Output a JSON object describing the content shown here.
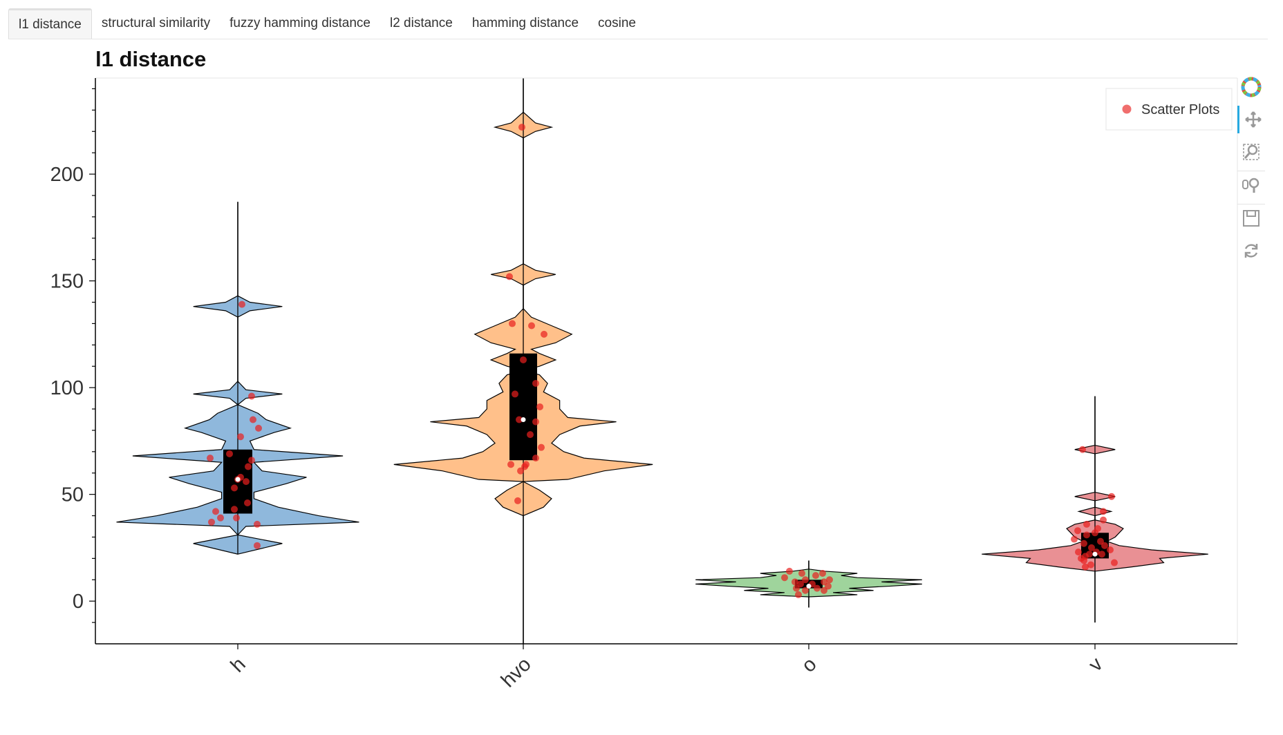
{
  "tabs": [
    {
      "label": "l1 distance",
      "active": true
    },
    {
      "label": "structural similarity",
      "active": false
    },
    {
      "label": "fuzzy hamming distance",
      "active": false
    },
    {
      "label": "l2 distance",
      "active": false
    },
    {
      "label": "hamming distance",
      "active": false
    },
    {
      "label": "cosine",
      "active": false
    }
  ],
  "toolbar": {
    "tools": [
      "bokeh-logo-icon",
      "pan-icon",
      "box-zoom-icon",
      "wheel-zoom-icon",
      "save-icon",
      "reset-icon"
    ]
  },
  "chart_data": {
    "type": "violin",
    "title": "l1 distance",
    "xlabel": "",
    "ylabel": "",
    "ylim": [
      -20,
      245
    ],
    "yticks": [
      0,
      50,
      100,
      150,
      200
    ],
    "categories": [
      "h",
      "hvo",
      "o",
      "v"
    ],
    "legend": {
      "entries": [
        "Scatter Plots"
      ],
      "placement": "top-right"
    },
    "series": [
      {
        "category": "h",
        "color": "#8fb8dc",
        "whisker": [
          22,
          187
        ],
        "q1": 41,
        "q3": 71,
        "median": 57,
        "density": [
          [
            22,
            0
          ],
          [
            27,
            55
          ],
          [
            31,
            0
          ],
          [
            35,
            10
          ],
          [
            37,
            150
          ],
          [
            40,
            100
          ],
          [
            44,
            50
          ],
          [
            48,
            20
          ],
          [
            51,
            20
          ],
          [
            55,
            60
          ],
          [
            58,
            85
          ],
          [
            61,
            30
          ],
          [
            65,
            20
          ],
          [
            68,
            130
          ],
          [
            71,
            20
          ],
          [
            75,
            15
          ],
          [
            79,
            45
          ],
          [
            81,
            65
          ],
          [
            85,
            35
          ],
          [
            88,
            25
          ],
          [
            92,
            0
          ],
          [
            95,
            10
          ],
          [
            97,
            55
          ],
          [
            99,
            10
          ],
          [
            103,
            0
          ],
          [
            133,
            0
          ],
          [
            136,
            15
          ],
          [
            138,
            55
          ],
          [
            140,
            15
          ],
          [
            143,
            0
          ]
        ],
        "points": [
          [
            69,
            -12
          ],
          [
            67,
            -40
          ],
          [
            66,
            20
          ],
          [
            63,
            15
          ],
          [
            58,
            4
          ],
          [
            57,
            0
          ],
          [
            56,
            12
          ],
          [
            53,
            -5
          ],
          [
            46,
            14
          ],
          [
            43,
            -5
          ],
          [
            42,
            -32
          ],
          [
            39,
            -2
          ],
          [
            39,
            -25
          ],
          [
            37,
            -38
          ],
          [
            36,
            28
          ],
          [
            26,
            28
          ],
          [
            96,
            20
          ],
          [
            85,
            22
          ],
          [
            81,
            30
          ],
          [
            77,
            4
          ],
          [
            139,
            6
          ]
        ]
      },
      {
        "category": "hvo",
        "color": "#ffc08a",
        "whisker": [
          -20,
          245
        ],
        "q1": 66,
        "q3": 116,
        "median": 85,
        "density": [
          [
            40,
            0
          ],
          [
            44,
            25
          ],
          [
            48,
            35
          ],
          [
            52,
            20
          ],
          [
            56,
            0
          ],
          [
            57,
            55
          ],
          [
            61,
            100
          ],
          [
            64,
            160
          ],
          [
            67,
            75
          ],
          [
            70,
            50
          ],
          [
            74,
            35
          ],
          [
            78,
            45
          ],
          [
            82,
            70
          ],
          [
            84,
            115
          ],
          [
            86,
            55
          ],
          [
            90,
            45
          ],
          [
            94,
            45
          ],
          [
            98,
            25
          ],
          [
            102,
            30
          ],
          [
            106,
            20
          ],
          [
            108,
            0
          ],
          [
            110,
            20
          ],
          [
            113,
            40
          ],
          [
            116,
            20
          ],
          [
            118,
            10
          ],
          [
            121,
            40
          ],
          [
            125,
            60
          ],
          [
            129,
            35
          ],
          [
            133,
            10
          ],
          [
            137,
            0
          ],
          [
            148,
            0
          ],
          [
            151,
            15
          ],
          [
            153,
            40
          ],
          [
            155,
            15
          ],
          [
            158,
            0
          ],
          [
            217,
            0
          ],
          [
            220,
            15
          ],
          [
            222,
            35
          ],
          [
            224,
            15
          ],
          [
            229,
            0
          ]
        ],
        "points": [
          [
            222,
            -2
          ],
          [
            152,
            -20
          ],
          [
            130,
            -16
          ],
          [
            129,
            12
          ],
          [
            125,
            30
          ],
          [
            113,
            0
          ],
          [
            102,
            18
          ],
          [
            97,
            -12
          ],
          [
            91,
            24
          ],
          [
            85,
            -6
          ],
          [
            84,
            18
          ],
          [
            78,
            10
          ],
          [
            72,
            26
          ],
          [
            67,
            18
          ],
          [
            64,
            -18
          ],
          [
            64,
            4
          ],
          [
            63,
            2
          ],
          [
            61,
            -4
          ],
          [
            47,
            -8
          ]
        ]
      },
      {
        "category": "o",
        "color": "#9fd49c",
        "whisker": [
          -3,
          19
        ],
        "q1": 6,
        "q3": 10,
        "median": 7,
        "density": [
          [
            2,
            0
          ],
          [
            3,
            60
          ],
          [
            4,
            30
          ],
          [
            5,
            80
          ],
          [
            6,
            50
          ],
          [
            7,
            100
          ],
          [
            8,
            140
          ],
          [
            9,
            90
          ],
          [
            10,
            140
          ],
          [
            11,
            60
          ],
          [
            12,
            40
          ],
          [
            13,
            60
          ],
          [
            14,
            20
          ],
          [
            15,
            0
          ]
        ],
        "points": [
          [
            14,
            -28
          ],
          [
            13,
            -10
          ],
          [
            13,
            20
          ],
          [
            12,
            10
          ],
          [
            11,
            -35
          ],
          [
            10,
            30
          ],
          [
            10,
            -5
          ],
          [
            9,
            22
          ],
          [
            9,
            -20
          ],
          [
            8,
            5
          ],
          [
            8,
            -12
          ],
          [
            7,
            28
          ],
          [
            6,
            -18
          ],
          [
            6,
            12
          ],
          [
            5,
            -5
          ],
          [
            5,
            22
          ],
          [
            3,
            -15
          ]
        ]
      },
      {
        "category": "v",
        "color": "#e99094",
        "whisker": [
          -10,
          96
        ],
        "q1": 20,
        "q3": 32,
        "median": 22,
        "density": [
          [
            14,
            0
          ],
          [
            16,
            45
          ],
          [
            18,
            85
          ],
          [
            20,
            80
          ],
          [
            22,
            140
          ],
          [
            24,
            70
          ],
          [
            26,
            30
          ],
          [
            28,
            15
          ],
          [
            30,
            25
          ],
          [
            32,
            30
          ],
          [
            34,
            35
          ],
          [
            36,
            25
          ],
          [
            38,
            0
          ],
          [
            40,
            0
          ],
          [
            42,
            20
          ],
          [
            44,
            0
          ],
          [
            47,
            0
          ],
          [
            49,
            25
          ],
          [
            51,
            0
          ],
          [
            69,
            0
          ],
          [
            71,
            25
          ],
          [
            73,
            0
          ]
        ],
        "points": [
          [
            71,
            -18
          ],
          [
            49,
            24
          ],
          [
            42,
            12
          ],
          [
            38,
            12
          ],
          [
            36,
            -12
          ],
          [
            34,
            4
          ],
          [
            33,
            -25
          ],
          [
            32,
            0
          ],
          [
            31,
            -12
          ],
          [
            29,
            -30
          ],
          [
            28,
            8
          ],
          [
            27,
            -16
          ],
          [
            26,
            14
          ],
          [
            25,
            -5
          ],
          [
            24,
            22
          ],
          [
            23,
            2
          ],
          [
            23,
            -24
          ],
          [
            22,
            -8
          ],
          [
            22,
            10
          ],
          [
            21,
            -14
          ],
          [
            20,
            -20
          ],
          [
            19,
            -16
          ],
          [
            18,
            28
          ],
          [
            17,
            -6
          ],
          [
            16,
            -14
          ]
        ]
      }
    ]
  }
}
